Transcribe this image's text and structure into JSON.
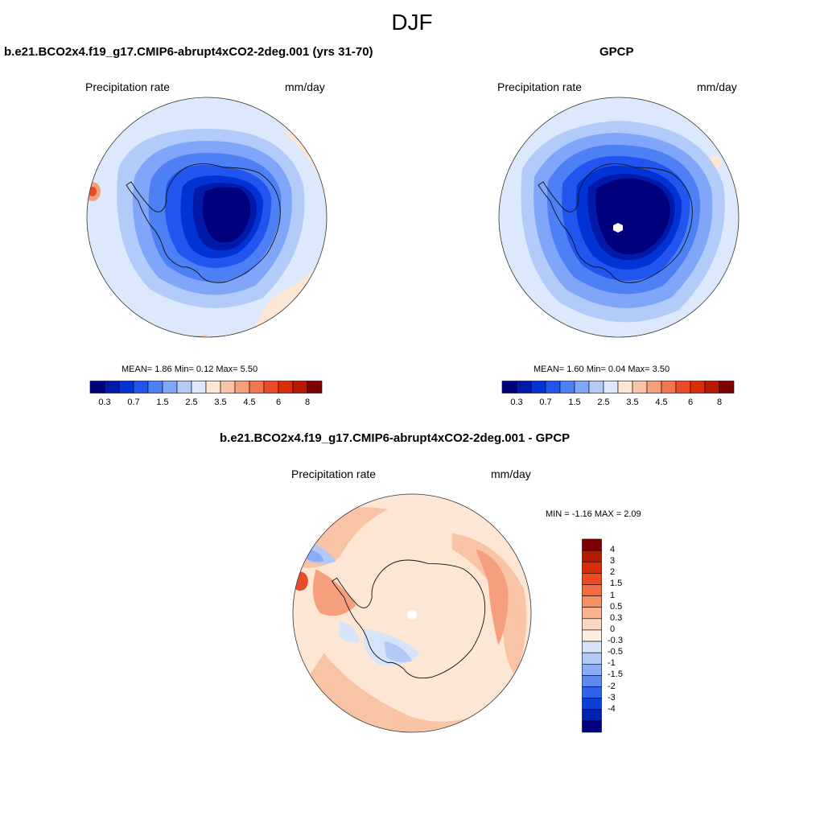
{
  "main_title": "DJF",
  "panels": {
    "model": {
      "title": "b.e21.BCO2x4.f19_g17.CMIP6-abrupt4xCO2-2deg.001 (yrs 31-70)",
      "variable": "Precipitation rate",
      "units": "mm/day",
      "stats": "MEAN=   1.86  Min=   0.12  Max=   5.50"
    },
    "obs": {
      "title": "GPCP",
      "variable": "Precipitation rate",
      "units": "mm/day",
      "stats": "MEAN=   1.60  Min=   0.04  Max=   3.50"
    },
    "diff": {
      "title": "b.e21.BCO2x4.f19_g17.CMIP6-abrupt4xCO2-2deg.001 - GPCP",
      "variable": "Precipitation rate",
      "units": "mm/day",
      "stats": "MIN =  -1.16 MAX =   2.09"
    }
  },
  "colorbar_abs": {
    "colors": [
      "#00007f",
      "#0019a8",
      "#0033d6",
      "#2255f0",
      "#4d7ff5",
      "#7fa6f8",
      "#b3cbf9",
      "#dce8fb",
      "#fde6d4",
      "#f9c3a6",
      "#f59f7c",
      "#f07550",
      "#ea4c28",
      "#d92c0a",
      "#b51a00",
      "#7f0000"
    ],
    "tick_labels": [
      "0.3",
      "0.7",
      "1.5",
      "2.5",
      "3.5",
      "4.5",
      "6",
      "8"
    ]
  },
  "colorbar_diff": {
    "colors": [
      "#7f0000",
      "#b51a00",
      "#d92c0a",
      "#f04a20",
      "#f36b3e",
      "#f58f66",
      "#f8b491",
      "#fbd7bf",
      "#fdeee3",
      "#d6e4fa",
      "#b2c9f7",
      "#8aacf4",
      "#5c88f0",
      "#2f63e8",
      "#0d3fd6",
      "#0021b0",
      "#000080"
    ],
    "tick_labels": [
      "4",
      "3",
      "2",
      "1.5",
      "1",
      "0.5",
      "0.3",
      "0",
      "-0.3",
      "-0.5",
      "-1",
      "-1.5",
      "-2",
      "-3",
      "-4"
    ]
  },
  "map_colors": {
    "ocean_mid": "#dce8fb",
    "pale_warm": "#fde6d4",
    "light_blue": "#b3cbf9",
    "blue_2": "#7fa6f8",
    "blue_3": "#4d7ff5",
    "blue_4": "#2255f0",
    "blue_5": "#0033d6",
    "blue_6": "#0019a8",
    "dark_blue": "#00007f",
    "warm_2": "#f9c3a6",
    "warm_3": "#f59f7c",
    "warm_4": "#ea4c28"
  }
}
